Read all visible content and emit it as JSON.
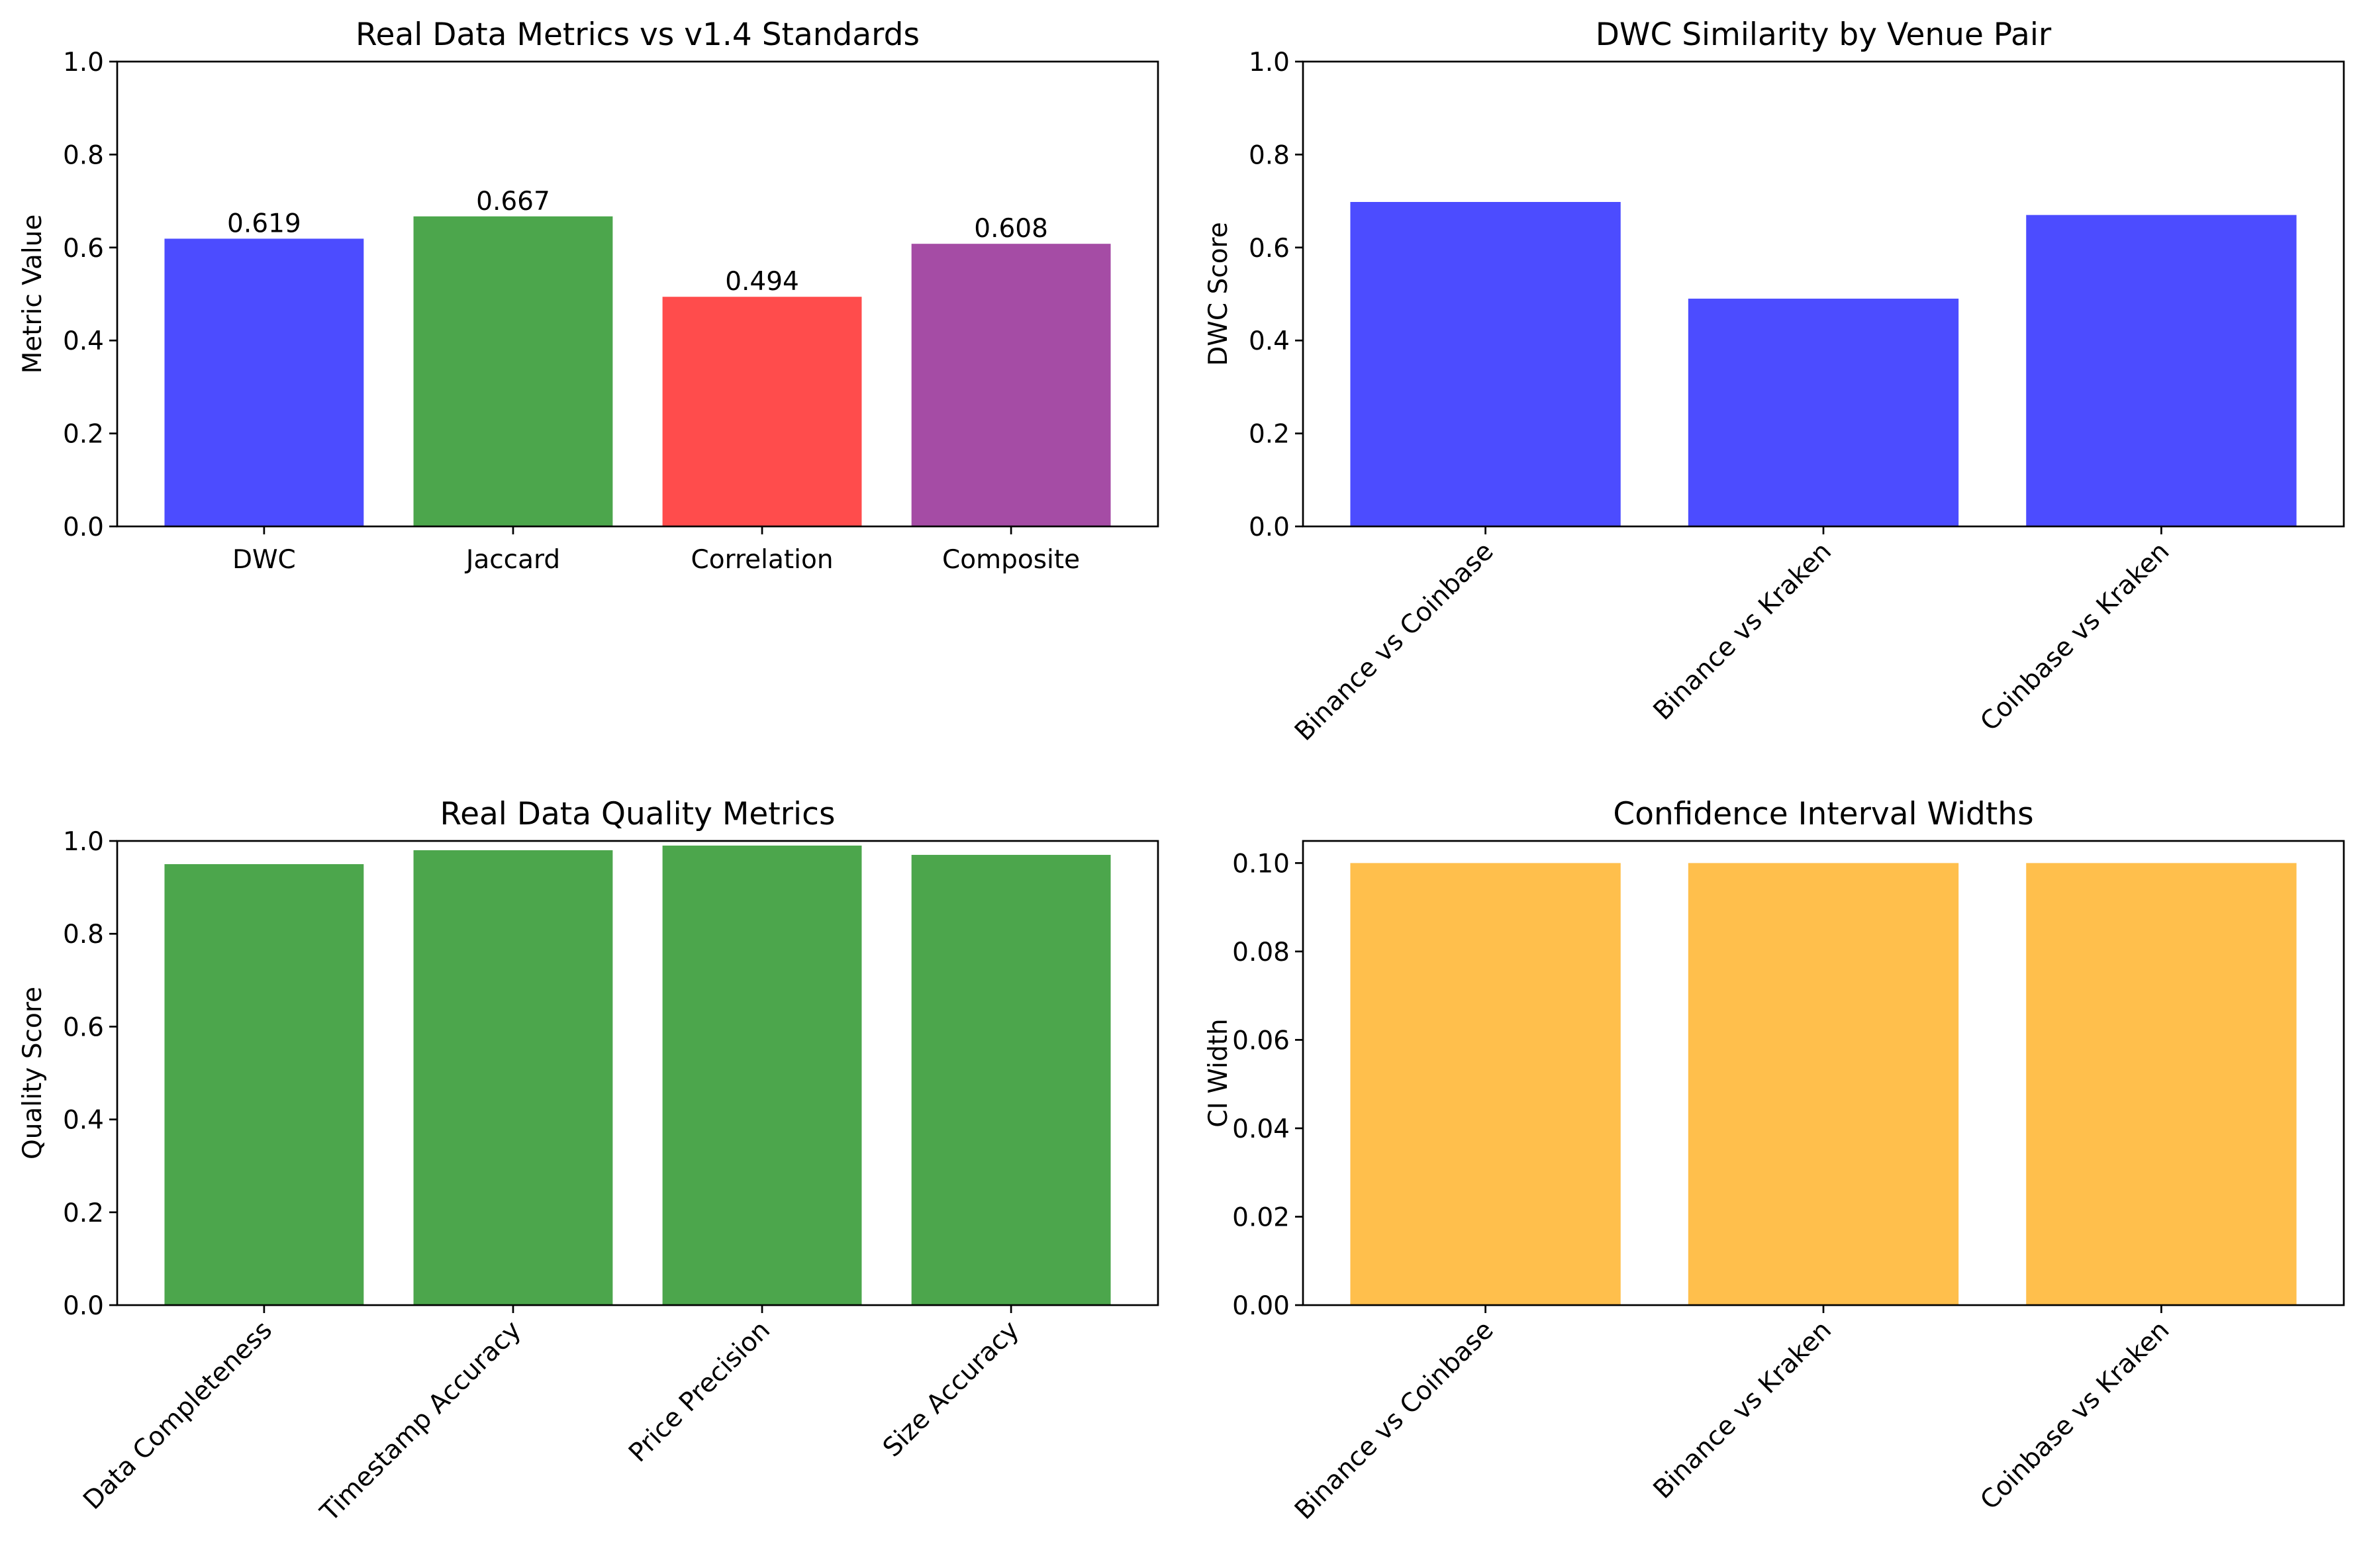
{
  "chart_data": [
    {
      "type": "bar",
      "title": "Real Data Metrics vs v1.4 Standards",
      "xlabel": "",
      "ylabel": "Metric Value",
      "categories": [
        "DWC",
        "Jaccard",
        "Correlation",
        "Composite"
      ],
      "values": [
        0.619,
        0.667,
        0.494,
        0.608
      ],
      "data_labels": [
        "0.619",
        "0.667",
        "0.494",
        "0.608"
      ],
      "colors": [
        "#4c4cff",
        "#4ca64c",
        "#ff4c4c",
        "#a54ca5"
      ],
      "ylim": [
        0,
        1
      ],
      "yticks": [
        0.0,
        0.2,
        0.4,
        0.6,
        0.8,
        1.0
      ],
      "ytick_labels": [
        "0.0",
        "0.2",
        "0.4",
        "0.6",
        "0.8",
        "1.0"
      ],
      "xtick_rotation": 0,
      "grid": false
    },
    {
      "type": "bar",
      "title": "DWC Similarity by Venue Pair",
      "xlabel": "",
      "ylabel": "DWC Score",
      "categories": [
        "Binance vs Coinbase",
        "Binance vs Kraken",
        "Coinbase vs Kraken"
      ],
      "values": [
        0.698,
        0.49,
        0.67
      ],
      "colors": [
        "#4c4cff",
        "#4c4cff",
        "#4c4cff"
      ],
      "ylim": [
        0,
        1
      ],
      "yticks": [
        0.0,
        0.2,
        0.4,
        0.6,
        0.8,
        1.0
      ],
      "ytick_labels": [
        "0.0",
        "0.2",
        "0.4",
        "0.6",
        "0.8",
        "1.0"
      ],
      "xtick_rotation": 45,
      "grid": false
    },
    {
      "type": "bar",
      "title": "Real Data Quality Metrics",
      "xlabel": "",
      "ylabel": "Quality Score",
      "categories": [
        "Data Completeness",
        "Timestamp Accuracy",
        "Price Precision",
        "Size Accuracy"
      ],
      "values": [
        0.95,
        0.98,
        0.99,
        0.97
      ],
      "colors": [
        "#4ca64c",
        "#4ca64c",
        "#4ca64c",
        "#4ca64c"
      ],
      "ylim": [
        0,
        1
      ],
      "yticks": [
        0.0,
        0.2,
        0.4,
        0.6,
        0.8,
        1.0
      ],
      "ytick_labels": [
        "0.0",
        "0.2",
        "0.4",
        "0.6",
        "0.8",
        "1.0"
      ],
      "xtick_rotation": 45,
      "grid": false
    },
    {
      "type": "bar",
      "title": "Confidence Interval Widths",
      "xlabel": "",
      "ylabel": "CI Width",
      "categories": [
        "Binance vs Coinbase",
        "Binance vs Kraken",
        "Coinbase vs Kraken"
      ],
      "values": [
        0.1,
        0.1,
        0.1
      ],
      "colors": [
        "#ffbf4c",
        "#ffbf4c",
        "#ffbf4c"
      ],
      "ylim": [
        0,
        0.105
      ],
      "yticks": [
        0.0,
        0.02,
        0.04,
        0.06,
        0.08,
        0.1
      ],
      "ytick_labels": [
        "0.00",
        "0.02",
        "0.04",
        "0.06",
        "0.08",
        "0.10"
      ],
      "xtick_rotation": 45,
      "grid": false
    }
  ]
}
